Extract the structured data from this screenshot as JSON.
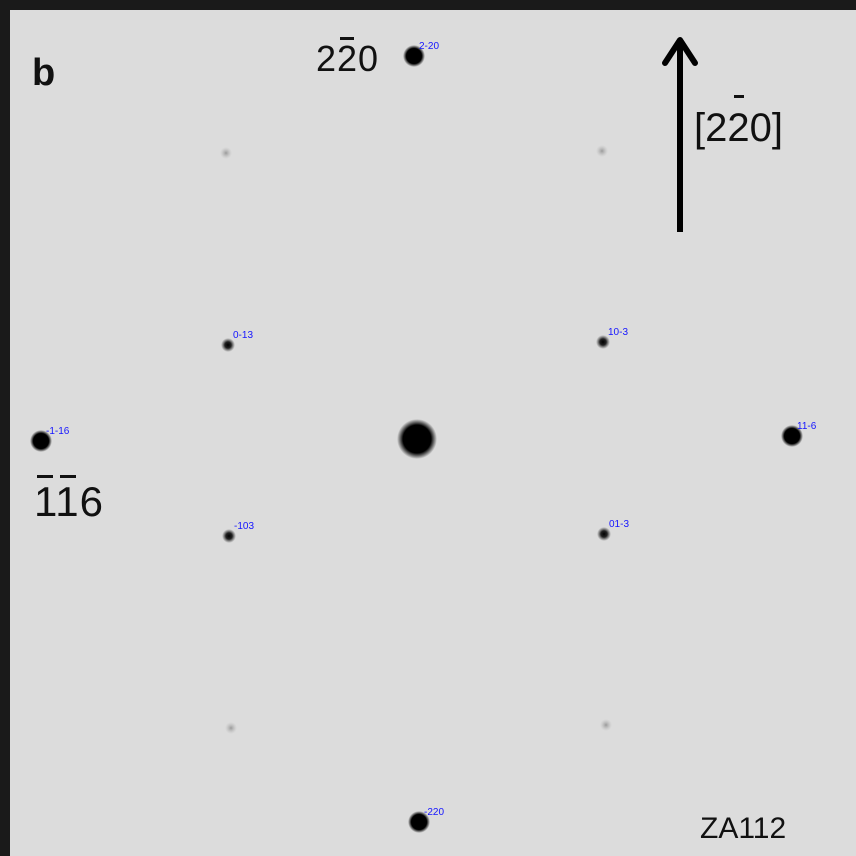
{
  "panel_letter": "b",
  "zone_axis": "ZA112",
  "labels": {
    "top_reflection": "220",
    "left_reflection": "116",
    "direction": "[220]"
  },
  "spots": [
    {
      "label": "2-20",
      "kind": "strong"
    },
    {
      "label": "0-13",
      "kind": "medium"
    },
    {
      "label": "10-3",
      "kind": "medium"
    },
    {
      "label": "-1-16",
      "kind": "strong"
    },
    {
      "label": "11-6",
      "kind": "strong"
    },
    {
      "label": "-103",
      "kind": "medium"
    },
    {
      "label": "01-3",
      "kind": "medium"
    },
    {
      "label": "-220",
      "kind": "strong"
    },
    {
      "label": "",
      "kind": "transmitted"
    },
    {
      "label": "",
      "kind": "faint"
    },
    {
      "label": "",
      "kind": "faint"
    },
    {
      "label": "",
      "kind": "faint"
    },
    {
      "label": "",
      "kind": "faint"
    }
  ],
  "colors": {
    "background": "#dcdcdc",
    "spot": "#000000",
    "index_label": "#1515ff"
  }
}
